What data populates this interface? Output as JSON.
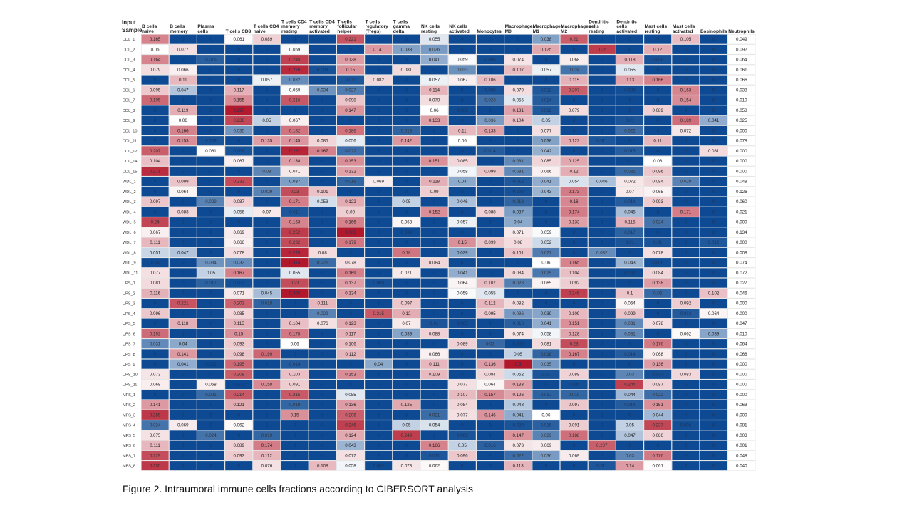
{
  "corner_label": [
    "Input",
    "Sample"
  ],
  "caption": "Figure 2. Intraumoral immune cells fractions according to CIBERSORT analysis",
  "colors": {
    "low": "#0d4a93",
    "mid": "#ffffff",
    "high": "#b2182b",
    "grid": "#e6e6e6",
    "text": "#222222"
  },
  "chart_data": {
    "type": "heatmap",
    "title": "",
    "xlabel": "",
    "ylabel": "Input Sample",
    "color_scale": {
      "low": 0,
      "mid": 0.06,
      "high": 0.3
    },
    "columns": [
      [
        "B cells",
        "naive"
      ],
      [
        "B cells",
        "memory"
      ],
      [
        "Plasma",
        "cells"
      ],
      [
        "T cells CD8"
      ],
      [
        "T cells CD4",
        "naive"
      ],
      [
        "T cells CD4",
        "memory",
        "resting"
      ],
      [
        "T cells CD4",
        "memory",
        "activated"
      ],
      [
        "T cells",
        "follicular",
        "helper"
      ],
      [
        "T cells",
        "regulatory",
        "(Tregs)"
      ],
      [
        "T cells",
        "gamma",
        "delta"
      ],
      [
        "NK cells",
        "resting"
      ],
      [
        "NK cells",
        "activated"
      ],
      [
        "Monocytes"
      ],
      [
        "Macrophages",
        "M0"
      ],
      [
        "Macrophages",
        "M1"
      ],
      [
        "Macrophages",
        "M2"
      ],
      [
        "Dendritic",
        "cells",
        "resting"
      ],
      [
        "Dendritic",
        "cells",
        "activated"
      ],
      [
        "Mast cells",
        "resting"
      ],
      [
        "Mast cells",
        "activated"
      ],
      [
        "Eosinophils"
      ],
      [
        "Neutrophils"
      ]
    ],
    "rows": [
      "DDL_1",
      "DDL_2",
      "DDL_3",
      "DDL_4",
      "DDL_5",
      "DDL_6",
      "DDL_7",
      "DDL_8",
      "DDL_9",
      "DDL_10",
      "DDL_11",
      "DDL_12",
      "DDL_14",
      "DDL_15",
      "WDL_1",
      "WDL_2",
      "WDL_3",
      "WDL_4",
      "WDL_5",
      "WDL_6",
      "WDL_7",
      "WDL_8",
      "WDL_9",
      "WDL_11",
      "UPS_1",
      "UPS_2",
      "UPS_3",
      "UPS_4",
      "UPS_5",
      "UPS_6",
      "UPS_7",
      "UPS_8",
      "UPS_9",
      "UPS_10",
      "UPS_11",
      "MFS_1",
      "MFS_2",
      "MFS_3",
      "MFS_4",
      "MFS_5",
      "MFS_6",
      "MFS_7",
      "MFS_8"
    ],
    "values": [
      [
        0.165,
        0,
        0,
        0.061,
        0.089,
        0,
        0,
        0.221,
        0,
        0,
        0.055,
        0,
        0,
        0,
        0.038,
        0.21,
        0,
        0,
        0,
        0.105,
        0,
        0.049
      ],
      [
        0.06,
        0.077,
        0,
        0,
        0,
        0.059,
        0,
        0,
        0.141,
        0.038,
        0.036,
        0,
        0,
        0,
        0.125,
        0,
        0.25,
        0,
        0.12,
        0,
        0,
        0.092
      ],
      [
        0.164,
        0,
        0.016,
        0,
        0,
        0.245,
        0,
        0.138,
        0,
        0,
        0.041,
        0.059,
        0.006,
        0.074,
        0,
        0.068,
        0,
        0.118,
        0.008,
        0,
        0,
        0.064
      ],
      [
        0.079,
        0.066,
        0,
        0,
        0,
        0.276,
        0.008,
        0.15,
        0,
        0.081,
        0,
        0.033,
        0,
        0.107,
        0.057,
        0.024,
        0,
        0.055,
        0,
        0,
        0,
        0.061
      ],
      [
        0,
        0.11,
        0,
        0,
        0.057,
        0.032,
        0,
        0.011,
        0.082,
        0,
        0.057,
        0.067,
        0.106,
        0,
        0,
        0.115,
        0,
        0.13,
        0.166,
        0,
        0,
        0.066
      ],
      [
        0.095,
        0.047,
        0,
        0.117,
        0,
        0.059,
        0.034,
        0.027,
        0,
        0,
        0.114,
        0,
        0.008,
        0.079,
        0.012,
        0.207,
        0,
        0.006,
        0,
        0.163,
        0,
        0.038
      ],
      [
        0.195,
        0,
        0,
        0.155,
        0,
        0.216,
        0,
        0.098,
        0,
        0,
        0.079,
        0,
        0.023,
        0.055,
        0.014,
        0,
        0,
        0,
        0,
        0.154,
        0,
        0.01
      ],
      [
        0,
        0.119,
        0,
        0.297,
        0,
        0,
        0,
        0.147,
        0,
        0,
        0.06,
        0.002,
        0,
        0.131,
        0.012,
        0.079,
        0,
        0,
        0.089,
        0,
        0,
        0.058
      ],
      [
        0,
        0.06,
        0,
        0.236,
        0.05,
        0.067,
        0,
        0,
        0,
        0,
        0.133,
        0,
        0.036,
        0.104,
        0.05,
        0,
        0,
        0.01,
        0,
        0.189,
        0.041,
        0.025
      ],
      [
        0,
        0.166,
        0,
        0.035,
        0,
        0.182,
        0,
        0.186,
        0,
        0.018,
        0,
        0.11,
        0.133,
        0,
        0.077,
        0,
        0,
        0.022,
        0,
        0.072,
        0,
        0.0
      ],
      [
        0,
        0.153,
        0.009,
        0,
        0.135,
        0.145,
        0.085,
        0.056,
        0,
        0.142,
        0,
        0.06,
        0,
        0,
        0.038,
        0.122,
        0.011,
        0,
        0.11,
        0,
        0,
        0.078
      ],
      [
        0.207,
        0,
        0.061,
        0.009,
        0,
        0.282,
        0.167,
        0.022,
        0,
        0,
        0,
        0,
        0.014,
        0,
        0.042,
        0,
        0,
        0.015,
        0,
        0,
        0.081,
        0.0
      ],
      [
        0.104,
        0,
        0,
        0.067,
        0,
        0.138,
        0,
        0.153,
        0,
        0,
        0.151,
        0.085,
        0,
        0.031,
        0.085,
        0.125,
        0,
        0,
        0.06,
        0,
        0,
        0.0
      ],
      [
        0.271,
        0,
        0,
        0,
        0.03,
        0.071,
        0,
        0.132,
        0,
        0,
        0,
        0.058,
        0.099,
        0.031,
        0.066,
        0.12,
        0,
        0.021,
        0.096,
        0,
        0,
        0.0
      ],
      [
        0,
        0.099,
        0,
        0.232,
        0,
        0.037,
        0,
        0.019,
        0.069,
        0,
        0.118,
        0.04,
        0,
        0.012,
        0.041,
        0.054,
        0.046,
        0.072,
        0.084,
        0.029,
        0,
        0.048
      ],
      [
        0,
        0.064,
        0,
        0,
        0.029,
        0.23,
        0.101,
        0,
        0,
        0,
        0.09,
        0,
        0,
        0.008,
        0.043,
        0.173,
        0,
        0.07,
        0.065,
        0,
        0,
        0.126
      ],
      [
        0.097,
        0,
        0.029,
        0.087,
        0,
        0.171,
        0.053,
        0.122,
        0,
        0.05,
        0,
        0.046,
        0,
        0.018,
        0,
        0.16,
        0,
        0.014,
        0.093,
        0,
        0,
        0.06
      ],
      [
        0,
        0.083,
        0,
        0.056,
        0.07,
        0.011,
        0,
        0.09,
        0,
        0,
        0.152,
        0,
        0.088,
        0.037,
        0,
        0.174,
        0,
        0.045,
        0,
        0.171,
        0,
        0.021
      ],
      [
        0.24,
        0,
        0,
        0,
        0,
        0.163,
        0,
        0.166,
        0,
        0.063,
        0,
        0.057,
        0,
        0.04,
        0,
        0.133,
        0,
        0.115,
        0.024,
        0,
        0,
        0.0
      ],
      [
        0.067,
        0,
        0,
        0.069,
        0,
        0.252,
        0,
        0.306,
        0,
        0.004,
        0,
        0,
        0,
        0.071,
        0.059,
        0,
        0,
        0.017,
        0,
        0,
        0,
        0.134
      ],
      [
        0.111,
        0,
        0,
        0.066,
        0,
        0.232,
        0,
        0.179,
        0,
        0,
        0,
        0.15,
        0.099,
        0.08,
        0.052,
        0,
        0,
        0.01,
        0.01,
        0,
        0.012,
        0.0
      ],
      [
        0.051,
        0.047,
        0,
        0.078,
        0,
        0.279,
        0.08,
        0,
        0,
        0.18,
        0,
        0.039,
        0,
        0.101,
        0.027,
        0,
        0.032,
        0,
        0.078,
        0,
        0,
        0.008
      ],
      [
        0.004,
        0,
        0.034,
        0.032,
        0,
        0.314,
        0.021,
        0.078,
        0,
        0,
        0.084,
        0,
        0,
        0,
        0.06,
        0.165,
        0,
        0.043,
        0.006,
        0,
        0,
        0.074
      ],
      [
        0.077,
        0,
        0.05,
        0.167,
        0,
        0.055,
        0,
        0.169,
        0,
        0.071,
        0,
        0.041,
        0,
        0.084,
        0.025,
        0.104,
        0,
        0.002,
        0.084,
        0,
        0,
        0.072
      ],
      [
        0.081,
        0,
        0.017,
        0.007,
        0,
        0.23,
        0,
        0.137,
        0.008,
        0,
        0,
        0.064,
        0.107,
        0.028,
        0.065,
        0.092,
        0,
        0,
        0.138,
        0,
        0,
        0.027
      ],
      [
        0.116,
        0,
        0,
        0.071,
        0.045,
        0.305,
        0,
        0.134,
        0,
        0,
        0,
        0.059,
        0.055,
        0,
        0,
        0.246,
        0,
        0.1,
        0.02,
        0,
        0.102,
        0.046
      ],
      [
        0,
        0.221,
        0,
        0.203,
        0.018,
        0,
        0.111,
        0,
        0,
        0.097,
        0,
        0,
        0.112,
        0.082,
        0,
        0,
        0,
        0.064,
        0,
        0.092,
        0,
        0.0
      ],
      [
        0.096,
        0,
        0,
        0.085,
        0,
        0,
        0.029,
        0,
        0.215,
        0.12,
        0,
        0,
        0.095,
        0.036,
        0.039,
        0.109,
        0,
        0.099,
        0,
        0.013,
        0.064,
        0.0
      ],
      [
        0,
        0.118,
        0,
        0.115,
        0,
        0.104,
        0.076,
        0.123,
        0,
        0.07,
        0.01,
        0.005,
        0,
        0.016,
        0.041,
        0.151,
        0,
        0.031,
        0.078,
        0,
        0,
        0.047
      ],
      [
        0.192,
        0,
        0,
        0.15,
        0,
        0.178,
        0,
        0.117,
        0,
        0.039,
        0.088,
        0,
        0,
        0.074,
        0.058,
        0.128,
        0,
        0.031,
        0,
        0.062,
        0.039,
        0.01
      ],
      [
        0.031,
        0.04,
        0,
        0.093,
        0,
        0.06,
        0,
        0.106,
        0,
        0,
        0,
        0.089,
        0.02,
        0.002,
        0.081,
        0.23,
        0,
        0,
        0.176,
        0,
        0,
        0.064
      ],
      [
        0,
        0.141,
        0,
        0.098,
        0.199,
        0,
        0,
        0.112,
        0,
        0,
        0.066,
        0,
        0,
        0.05,
        0.018,
        0.167,
        0,
        0.014,
        0.068,
        0,
        0,
        0.068
      ],
      [
        0,
        0.041,
        0.002,
        0.195,
        0,
        0.014,
        0,
        0,
        0.04,
        0,
        0.111,
        0,
        0.136,
        0.3,
        0.035,
        0,
        0,
        0,
        0.136,
        0,
        0,
        0.0
      ],
      [
        0.073,
        0,
        0,
        0.208,
        0,
        0.103,
        0,
        0.153,
        0,
        0,
        0.109,
        0,
        0.084,
        0.052,
        0.01,
        0.088,
        0,
        0.03,
        0.007,
        0.083,
        0,
        0.0
      ],
      [
        0.068,
        0,
        0.068,
        0.001,
        0.158,
        0.091,
        0,
        0,
        0,
        0,
        0,
        0.077,
        0.064,
        0.133,
        0,
        0.006,
        0,
        0.244,
        0.087,
        0,
        0,
        0.0
      ],
      [
        0,
        0,
        0.021,
        0.214,
        0,
        0.215,
        0,
        0.055,
        0,
        0,
        0,
        0.107,
        0.157,
        0.126,
        0.017,
        0.019,
        0,
        0.044,
        0.022,
        0,
        0,
        0.0
      ],
      [
        0.141,
        0,
        0,
        0.121,
        0,
        0.019,
        0,
        0.136,
        0,
        0.125,
        0,
        0.084,
        0,
        0.048,
        0,
        0.097,
        0,
        0.014,
        0.151,
        0,
        0,
        0.063
      ],
      [
        0.255,
        0,
        0,
        0,
        0,
        0.15,
        0,
        0.206,
        0,
        0,
        0.021,
        0.077,
        0.146,
        0.041,
        0.06,
        0,
        0,
        0,
        0.044,
        0,
        0,
        0.0
      ],
      [
        0.024,
        0.069,
        0,
        0.062,
        0,
        0,
        0,
        0.246,
        0,
        0.05,
        0.054,
        0,
        0,
        0.009,
        0.016,
        0.091,
        0,
        0.05,
        0.237,
        0.006,
        0,
        0.081
      ],
      [
        0.075,
        0,
        0.024,
        0,
        0.019,
        0,
        0,
        0.124,
        0,
        0.249,
        0,
        0.009,
        0,
        0.147,
        0.029,
        0.188,
        0,
        0.047,
        0.086,
        0,
        0,
        0.003
      ],
      [
        0.111,
        0,
        0,
        0.089,
        0.174,
        0,
        0,
        0.043,
        0,
        0,
        0.166,
        0.05,
        0.016,
        0.073,
        0.069,
        0,
        0.207,
        0,
        0,
        0,
        0,
        0.001
      ],
      [
        0.229,
        0,
        0,
        0.093,
        0.112,
        0,
        0,
        0.077,
        0,
        0,
        0.011,
        0.096,
        0,
        0.022,
        0.036,
        0.069,
        0,
        0.03,
        0.176,
        0,
        0,
        0.048
      ],
      [
        0.255,
        0,
        0,
        0,
        0.076,
        0,
        0.108,
        0.058,
        0.002,
        0.073,
        0.062,
        0,
        0,
        0.113,
        0,
        0,
        0.011,
        0.14,
        0.061,
        0,
        0,
        0.04
      ]
    ]
  }
}
